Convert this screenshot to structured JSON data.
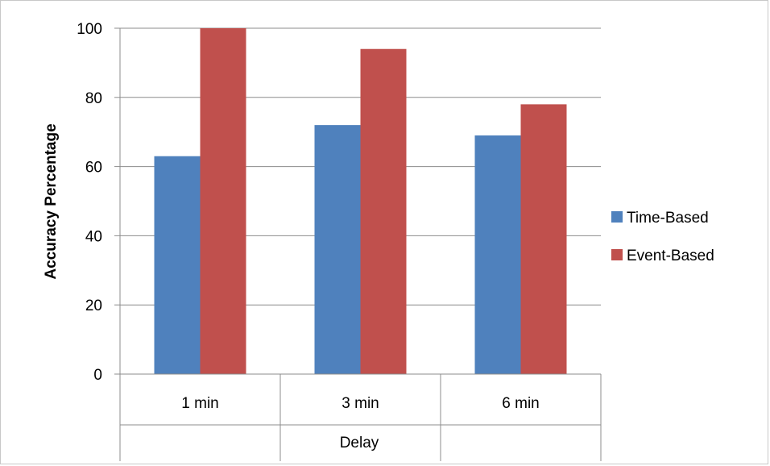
{
  "chart_data": {
    "type": "bar",
    "categories": [
      "1 min",
      "3 min",
      "6 min"
    ],
    "series": [
      {
        "name": "Time-Based",
        "values": [
          63,
          72,
          69
        ],
        "color": "#4f81bd"
      },
      {
        "name": "Event-Based",
        "values": [
          100,
          94,
          78
        ],
        "color": "#c0504d"
      }
    ],
    "title": "",
    "xlabel": "Delay",
    "ylabel": "Accuracy Percentage",
    "ylim": [
      0,
      100
    ],
    "yticks": [
      0,
      20,
      40,
      60,
      80,
      100
    ],
    "grid": true,
    "legend": "right"
  }
}
